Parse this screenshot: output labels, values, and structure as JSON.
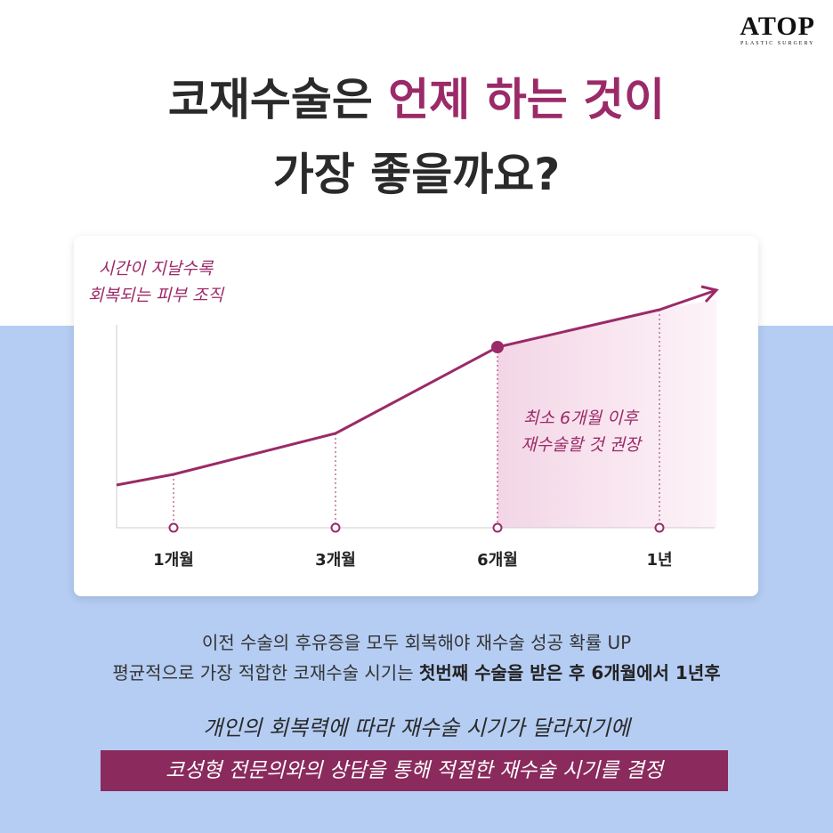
{
  "logo": {
    "name": "ATOP",
    "tagline": "PLASTIC SURGERY"
  },
  "header": {
    "title_line1_plain": "코재수술은",
    "title_line1_highlight": "언제 하는 것이",
    "title_line2": "가장 좋을까요?"
  },
  "graph": {
    "y_note": [
      "시간이 지날수록",
      "회복되는 피부 조직"
    ],
    "region_note": [
      "최소 6개월 이후",
      "재수술할 것 권장"
    ],
    "x_labels": [
      "1개월",
      "3개월",
      "6개월",
      "1년"
    ]
  },
  "body": {
    "line1": "이전 수술의 후유증을 모두 회복해야 재수술 성공 확률 UP",
    "line2_plain": "평균적으로 가장 적합한 코재수술 시기는",
    "line2_bold": "첫번째 수술을 받은 후 6개월에서 1년후"
  },
  "closing": {
    "line1": "개인의 회복력에 따라 재수술 시기가 달라지기에",
    "banner": "코성형 전문의와의 상담을 통해 적절한 재수술 시기를 결정"
  }
}
